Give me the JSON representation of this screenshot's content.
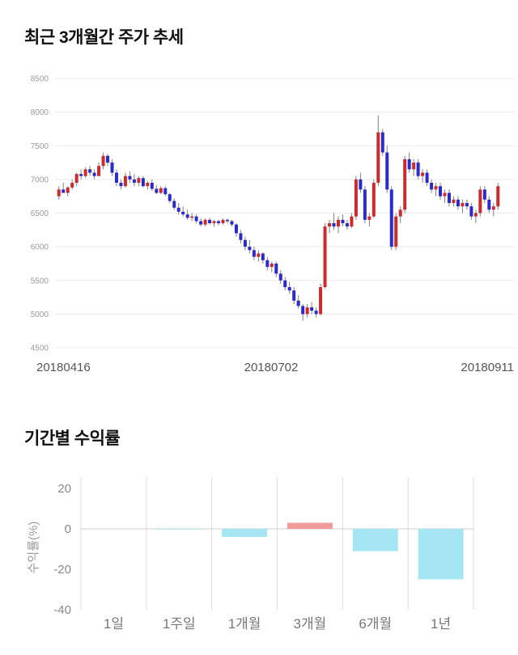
{
  "page": {
    "price_section_title": "최근 3개월간 주가 추세",
    "returns_section_title": "기간별 수익률"
  },
  "chart_data": [
    {
      "type": "candlestick",
      "title": "최근 3개월간 주가 추세",
      "ylim": [
        4500,
        8500
      ],
      "y_ticks": [
        8500,
        8000,
        7500,
        7000,
        6500,
        6000,
        5500,
        5000,
        4500
      ],
      "x_labels": [
        "20180416",
        "20180702",
        "20180911"
      ],
      "up_color": "#cc2b2b",
      "down_color": "#2b2bcc",
      "wick_color": "#808080",
      "grid_color": "#e9e9e9",
      "tick_color": "#999999",
      "xlabel_color": "#555555",
      "candles": [
        [
          6750,
          6900,
          6700,
          6850
        ],
        [
          6850,
          6950,
          6800,
          6800
        ],
        [
          6800,
          6900,
          6750,
          6880
        ],
        [
          6880,
          7000,
          6850,
          6950
        ],
        [
          6950,
          7100,
          6900,
          7080
        ],
        [
          7080,
          7150,
          7000,
          7050
        ],
        [
          7050,
          7180,
          7020,
          7150
        ],
        [
          7150,
          7200,
          7050,
          7100
        ],
        [
          7100,
          7150,
          7000,
          7050
        ],
        [
          7050,
          7250,
          7050,
          7200
        ],
        [
          7200,
          7400,
          7150,
          7350
        ],
        [
          7350,
          7380,
          7200,
          7250
        ],
        [
          7250,
          7300,
          7050,
          7100
        ],
        [
          7100,
          7150,
          6900,
          6950
        ],
        [
          6950,
          7000,
          6850,
          6900
        ],
        [
          6900,
          7100,
          6880,
          7050
        ],
        [
          7050,
          7120,
          6950,
          7000
        ],
        [
          7000,
          7080,
          6900,
          6950
        ],
        [
          6950,
          7050,
          6900,
          7020
        ],
        [
          7020,
          7050,
          6880,
          6900
        ],
        [
          6900,
          6980,
          6850,
          6950
        ],
        [
          6950,
          7000,
          6830,
          6860
        ],
        [
          6860,
          6920,
          6780,
          6800
        ],
        [
          6800,
          6900,
          6780,
          6870
        ],
        [
          6870,
          6900,
          6750,
          6780
        ],
        [
          6780,
          6800,
          6650,
          6680
        ],
        [
          6680,
          6720,
          6550,
          6580
        ],
        [
          6580,
          6650,
          6480,
          6520
        ],
        [
          6520,
          6600,
          6450,
          6480
        ],
        [
          6480,
          6550,
          6400,
          6430
        ],
        [
          6430,
          6500,
          6380,
          6450
        ],
        [
          6450,
          6480,
          6350,
          6380
        ],
        [
          6380,
          6420,
          6300,
          6330
        ],
        [
          6330,
          6420,
          6300,
          6400
        ],
        [
          6400,
          6430,
          6330,
          6350
        ],
        [
          6350,
          6400,
          6300,
          6380
        ],
        [
          6380,
          6400,
          6320,
          6350
        ],
        [
          6350,
          6420,
          6330,
          6400
        ],
        [
          6400,
          6420,
          6350,
          6380
        ],
        [
          6380,
          6400,
          6300,
          6330
        ],
        [
          6330,
          6350,
          6150,
          6200
        ],
        [
          6200,
          6250,
          6050,
          6100
        ],
        [
          6100,
          6150,
          5950,
          6000
        ],
        [
          6000,
          6100,
          5900,
          5950
        ],
        [
          5950,
          6000,
          5800,
          5850
        ],
        [
          5850,
          5950,
          5780,
          5900
        ],
        [
          5900,
          5920,
          5750,
          5800
        ],
        [
          5800,
          5850,
          5650,
          5700
        ],
        [
          5700,
          5780,
          5620,
          5750
        ],
        [
          5750,
          5780,
          5550,
          5600
        ],
        [
          5600,
          5650,
          5450,
          5500
        ],
        [
          5500,
          5550,
          5350,
          5400
        ],
        [
          5400,
          5480,
          5300,
          5350
        ],
        [
          5350,
          5400,
          5150,
          5200
        ],
        [
          5200,
          5280,
          5080,
          5120
        ],
        [
          5120,
          5150,
          4900,
          5000
        ],
        [
          5000,
          5150,
          4950,
          5100
        ],
        [
          5100,
          5180,
          5000,
          5050
        ],
        [
          5050,
          5100,
          4950,
          5000
        ],
        [
          5000,
          5450,
          4980,
          5400
        ],
        [
          5400,
          6350,
          5380,
          6300
        ],
        [
          6300,
          6400,
          6200,
          6350
        ],
        [
          6350,
          6500,
          6250,
          6300
        ],
        [
          6300,
          6450,
          6200,
          6400
        ],
        [
          6400,
          6480,
          6300,
          6350
        ],
        [
          6350,
          6400,
          6250,
          6300
        ],
        [
          6300,
          6500,
          6280,
          6450
        ],
        [
          6450,
          7050,
          6400,
          7000
        ],
        [
          7000,
          7100,
          6800,
          6850
        ],
        [
          6850,
          6900,
          6350,
          6400
        ],
        [
          6400,
          6500,
          6300,
          6450
        ],
        [
          6450,
          7000,
          6430,
          6950
        ],
        [
          6950,
          7950,
          6900,
          7700
        ],
        [
          7700,
          7750,
          7350,
          7400
        ],
        [
          7400,
          7500,
          6800,
          6850
        ],
        [
          6850,
          6900,
          5950,
          6000
        ],
        [
          6000,
          6500,
          5950,
          6450
        ],
        [
          6450,
          6600,
          6350,
          6550
        ],
        [
          6550,
          7350,
          6500,
          7300
        ],
        [
          7300,
          7400,
          7100,
          7150
        ],
        [
          7150,
          7300,
          7050,
          7250
        ],
        [
          7250,
          7300,
          7000,
          7050
        ],
        [
          7050,
          7150,
          6950,
          7100
        ],
        [
          7100,
          7150,
          6900,
          6950
        ],
        [
          6950,
          7000,
          6800,
          6850
        ],
        [
          6850,
          6950,
          6750,
          6900
        ],
        [
          6900,
          6950,
          6700,
          6750
        ],
        [
          6750,
          6850,
          6650,
          6800
        ],
        [
          6800,
          6850,
          6600,
          6650
        ],
        [
          6650,
          6750,
          6600,
          6700
        ],
        [
          6700,
          6750,
          6550,
          6600
        ],
        [
          6600,
          6700,
          6500,
          6650
        ],
        [
          6650,
          6700,
          6550,
          6600
        ],
        [
          6600,
          6650,
          6400,
          6450
        ],
        [
          6450,
          6550,
          6350,
          6500
        ],
        [
          6500,
          6900,
          6450,
          6850
        ],
        [
          6850,
          6900,
          6650,
          6700
        ],
        [
          6700,
          6750,
          6500,
          6550
        ],
        [
          6550,
          6650,
          6450,
          6600
        ],
        [
          6600,
          6950,
          6550,
          6900
        ]
      ]
    },
    {
      "type": "bar",
      "title": "기간별 수익률",
      "ylabel": "수익률(%)",
      "categories": [
        "1일",
        "1주일",
        "1개월",
        "3개월",
        "6개월",
        "1년"
      ],
      "values": [
        0,
        -0.3,
        -4,
        3,
        -11,
        -25
      ],
      "y_ticks": [
        20,
        0,
        -20,
        -40
      ],
      "ylim": [
        -40,
        20
      ],
      "positive_color": "#f09a9a",
      "negative_color": "#a6e6f2",
      "grid_color": "#dddddd",
      "zero_line_color": "#cccccc",
      "tick_color": "#888888",
      "category_color": "#777777",
      "ylabel_color": "#999999"
    }
  ]
}
